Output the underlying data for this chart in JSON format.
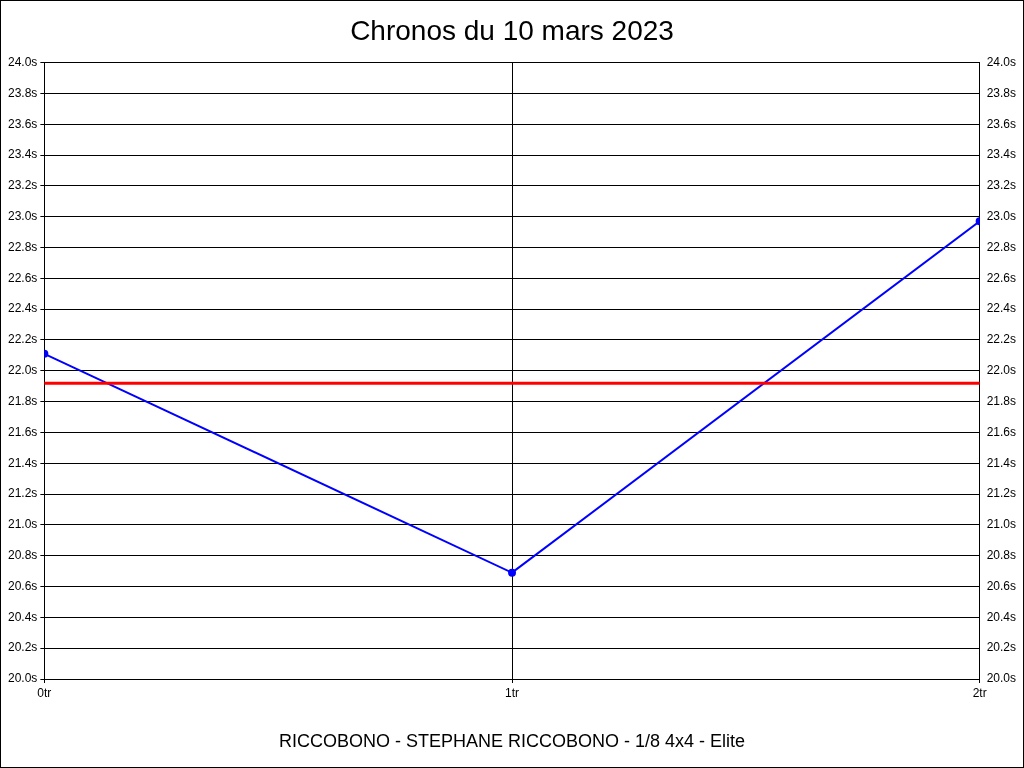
{
  "chart_data": {
    "type": "line",
    "title": "Chronos du 10 mars 2023",
    "xlabel": "RICCOBONO - STEPHANE RICCOBONO - 1/8 4x4 - Elite",
    "x": [
      0,
      1,
      2
    ],
    "series": [
      {
        "color": "#0000ff",
        "values": [
          22.11,
          20.69,
          22.97
        ]
      }
    ],
    "xlim": [
      0,
      2
    ],
    "xticks": [
      {
        "value": 0,
        "label": "0tr"
      },
      {
        "value": 1,
        "label": "1tr"
      },
      {
        "value": 2,
        "label": "2tr"
      }
    ],
    "ylim": [
      20,
      24
    ],
    "yticks": [
      {
        "value": 20,
        "label": "20.0s"
      },
      {
        "value": 20.2,
        "label": "20.2s"
      },
      {
        "value": 20.4,
        "label": "20.4s"
      },
      {
        "value": 20.6,
        "label": "20.6s"
      },
      {
        "value": 20.8,
        "label": "20.8s"
      },
      {
        "value": 21,
        "label": "21.0s"
      },
      {
        "value": 21.2,
        "label": "21.2s"
      },
      {
        "value": 21.4,
        "label": "21.4s"
      },
      {
        "value": 21.6,
        "label": "21.6s"
      },
      {
        "value": 21.8,
        "label": "21.8s"
      },
      {
        "value": 22,
        "label": "22.0s"
      },
      {
        "value": 22.2,
        "label": "22.2s"
      },
      {
        "value": 22.4,
        "label": "22.4s"
      },
      {
        "value": 22.6,
        "label": "22.6s"
      },
      {
        "value": 22.8,
        "label": "22.8s"
      },
      {
        "value": 23,
        "label": "23.0s"
      },
      {
        "value": 23.2,
        "label": "23.2s"
      },
      {
        "value": 23.4,
        "label": "23.4s"
      },
      {
        "value": 23.6,
        "label": "23.6s"
      },
      {
        "value": 23.8,
        "label": "23.8s"
      },
      {
        "value": 24,
        "label": "24.0s"
      }
    ],
    "y2lim": [
      20,
      24
    ],
    "y2ticks": [
      {
        "value": 20,
        "label": "20.0s"
      },
      {
        "value": 20.2,
        "label": "20.2s"
      },
      {
        "value": 20.4,
        "label": "20.4s"
      },
      {
        "value": 20.6,
        "label": "20.6s"
      },
      {
        "value": 20.8,
        "label": "20.8s"
      },
      {
        "value": 21,
        "label": "21.0s"
      },
      {
        "value": 21.2,
        "label": "21.2s"
      },
      {
        "value": 21.4,
        "label": "21.4s"
      },
      {
        "value": 21.6,
        "label": "21.6s"
      },
      {
        "value": 21.8,
        "label": "21.8s"
      },
      {
        "value": 22,
        "label": "22.0s"
      },
      {
        "value": 22.2,
        "label": "22.2s"
      },
      {
        "value": 22.4,
        "label": "22.4s"
      },
      {
        "value": 22.6,
        "label": "22.6s"
      },
      {
        "value": 22.8,
        "label": "22.8s"
      },
      {
        "value": 23,
        "label": "23.0s"
      },
      {
        "value": 23.2,
        "label": "23.2s"
      },
      {
        "value": 23.4,
        "label": "23.4s"
      },
      {
        "value": 23.6,
        "label": "23.6s"
      },
      {
        "value": 23.8,
        "label": "23.8s"
      },
      {
        "value": 24,
        "label": "24.0s"
      }
    ],
    "ref_lines": [
      {
        "axis": "y",
        "value": 21.92,
        "color": "#ff0000"
      }
    ],
    "grid": true,
    "marker": "circle",
    "line_style": "solid",
    "legend": false
  }
}
